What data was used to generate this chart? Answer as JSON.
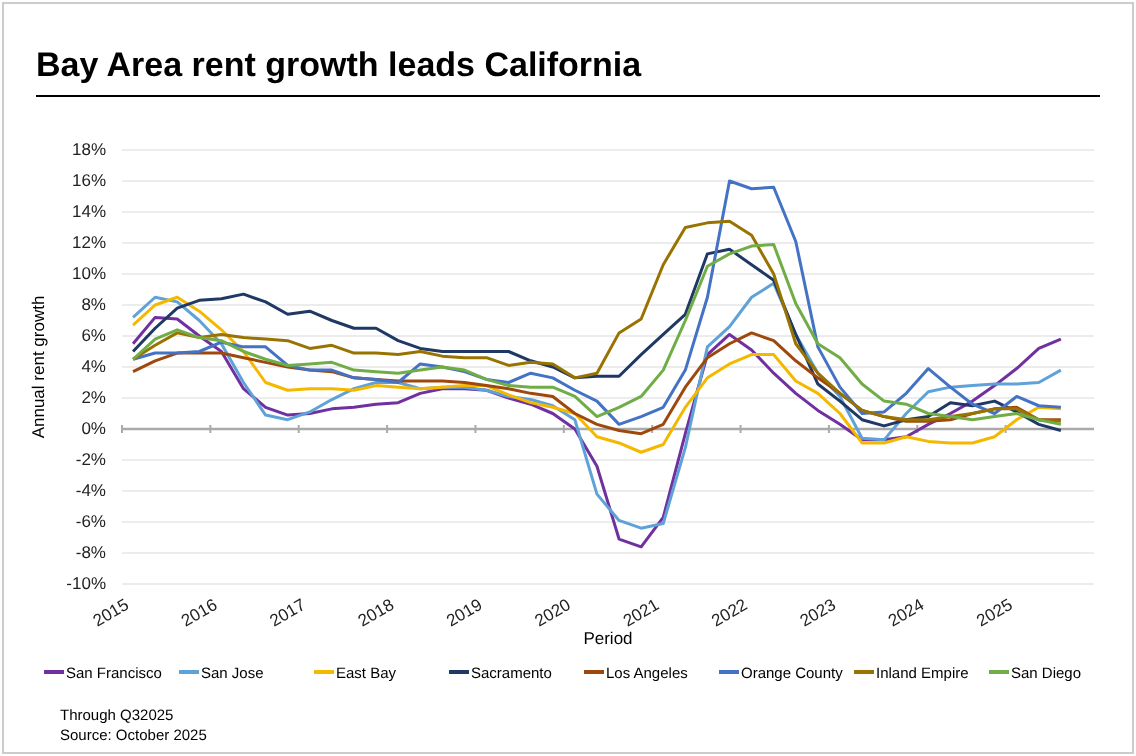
{
  "chart_data": {
    "type": "line",
    "title": "Bay Area rent growth leads California",
    "xlabel": "Period",
    "ylabel": "Annual rent growth",
    "x": [
      2015.125,
      2015.375,
      2015.625,
      2015.875,
      2016.125,
      2016.375,
      2016.625,
      2016.875,
      2017.125,
      2017.375,
      2017.625,
      2017.875,
      2018.125,
      2018.375,
      2018.625,
      2018.875,
      2019.125,
      2019.375,
      2019.625,
      2019.875,
      2020.125,
      2020.375,
      2020.625,
      2020.875,
      2021.125,
      2021.375,
      2021.625,
      2021.875,
      2022.125,
      2022.375,
      2022.625,
      2022.875,
      2023.125,
      2023.375,
      2023.625,
      2023.875,
      2024.125,
      2024.375,
      2024.625,
      2024.875,
      2025.125,
      2025.375,
      2025.625
    ],
    "xlim": [
      2015,
      2026
    ],
    "xticks": [
      2015,
      2016,
      2017,
      2018,
      2019,
      2020,
      2021,
      2022,
      2023,
      2024,
      2025
    ],
    "ylim": [
      -10,
      18
    ],
    "yticks": [
      {
        "value": -10,
        "label": "-10%"
      },
      {
        "value": -8,
        "label": "-8%"
      },
      {
        "value": -6,
        "label": "-6%"
      },
      {
        "value": -4,
        "label": "-4%"
      },
      {
        "value": -2,
        "label": "-2%"
      },
      {
        "value": 0,
        "label": "0%"
      },
      {
        "value": 2,
        "label": "2%"
      },
      {
        "value": 4,
        "label": "4%"
      },
      {
        "value": 6,
        "label": "6%"
      },
      {
        "value": 8,
        "label": "8%"
      },
      {
        "value": 10,
        "label": "10%"
      },
      {
        "value": 12,
        "label": "12%"
      },
      {
        "value": 14,
        "label": "14%"
      },
      {
        "value": 16,
        "label": "16%"
      },
      {
        "value": 18,
        "label": "18%"
      }
    ],
    "ref_lines": [
      {
        "axis": "y",
        "value": 0,
        "color": "#aaaaaa"
      }
    ],
    "grid": "y",
    "legend": "bottom",
    "marker": "none",
    "line_style": "solid",
    "series": [
      {
        "name": "San Francisco",
        "color": "#7030a0",
        "values": [
          5.5,
          7.2,
          7.1,
          6.0,
          5.0,
          2.6,
          1.4,
          0.9,
          1.0,
          1.3,
          1.4,
          1.6,
          1.7,
          2.3,
          2.6,
          2.6,
          2.5,
          2.0,
          1.6,
          1.0,
          0.0,
          -2.4,
          -7.1,
          -7.6,
          -5.7,
          -0.3,
          4.8,
          6.1,
          5.1,
          3.6,
          2.3,
          1.2,
          0.3,
          -0.7,
          -0.7,
          -0.5,
          0.3,
          1.0,
          1.8,
          2.8,
          3.9,
          5.2,
          5.8
        ]
      },
      {
        "name": "San Jose",
        "color": "#5fa2d8",
        "values": [
          7.2,
          8.5,
          8.2,
          7.0,
          5.5,
          3.0,
          0.9,
          0.6,
          1.1,
          1.9,
          2.6,
          3.0,
          3.0,
          2.6,
          2.7,
          2.7,
          2.5,
          2.1,
          1.9,
          1.5,
          0.6,
          -4.2,
          -5.9,
          -6.4,
          -6.1,
          -1.2,
          5.3,
          6.6,
          8.5,
          9.4,
          6.1,
          3.6,
          2.1,
          -0.6,
          -0.7,
          1.0,
          2.4,
          2.7,
          2.8,
          2.9,
          2.9,
          3.0,
          3.8
        ]
      },
      {
        "name": "East Bay",
        "color": "#f5b800",
        "values": [
          6.7,
          8.0,
          8.5,
          7.6,
          6.4,
          5.0,
          3.0,
          2.5,
          2.6,
          2.6,
          2.5,
          2.8,
          2.7,
          2.6,
          2.7,
          2.8,
          2.8,
          2.2,
          1.7,
          1.4,
          1.0,
          -0.5,
          -0.9,
          -1.5,
          -1.0,
          1.4,
          3.3,
          4.2,
          4.8,
          4.8,
          3.1,
          2.3,
          1.0,
          -0.9,
          -0.9,
          -0.5,
          -0.8,
          -0.9,
          -0.9,
          -0.5,
          0.6,
          1.4,
          1.3
        ]
      },
      {
        "name": "Sacramento",
        "color": "#1f3864",
        "values": [
          5.0,
          6.5,
          7.8,
          8.3,
          8.4,
          8.7,
          8.2,
          7.4,
          7.6,
          7.0,
          6.5,
          6.5,
          5.7,
          5.2,
          5.0,
          5.0,
          5.0,
          5.0,
          4.4,
          4.0,
          3.3,
          3.4,
          3.4,
          4.8,
          6.1,
          7.4,
          11.3,
          11.6,
          10.6,
          9.6,
          6.1,
          2.9,
          1.8,
          0.6,
          0.2,
          0.6,
          0.8,
          1.7,
          1.5,
          1.8,
          1.1,
          0.3,
          -0.1
        ]
      },
      {
        "name": "Los Angeles",
        "color": "#9e480e",
        "values": [
          3.7,
          4.4,
          4.9,
          4.9,
          4.9,
          4.6,
          4.3,
          4.0,
          3.8,
          3.7,
          3.3,
          3.2,
          3.1,
          3.1,
          3.1,
          3.0,
          2.8,
          2.6,
          2.3,
          2.1,
          1.0,
          0.3,
          -0.1,
          -0.3,
          0.3,
          2.7,
          4.6,
          5.5,
          6.2,
          5.7,
          4.4,
          3.3,
          2.3,
          1.2,
          0.8,
          0.5,
          0.5,
          0.6,
          1.0,
          1.3,
          1.4,
          0.6,
          0.6
        ]
      },
      {
        "name": "Orange County",
        "color": "#4472c4",
        "values": [
          4.5,
          4.9,
          4.9,
          5.0,
          5.6,
          5.3,
          5.3,
          4.1,
          3.8,
          3.8,
          3.3,
          3.2,
          3.0,
          4.2,
          4.0,
          3.7,
          3.2,
          3.0,
          3.6,
          3.3,
          2.5,
          1.8,
          0.3,
          0.8,
          1.4,
          3.8,
          8.5,
          16.0,
          15.5,
          15.6,
          12.1,
          5.3,
          2.7,
          1.0,
          1.1,
          2.3,
          3.9,
          2.7,
          1.6,
          1.0,
          2.1,
          1.5,
          1.4
        ]
      },
      {
        "name": "Inland Empire",
        "color": "#997300",
        "values": [
          4.5,
          5.4,
          6.2,
          5.9,
          6.1,
          5.9,
          5.8,
          5.7,
          5.2,
          5.4,
          4.9,
          4.9,
          4.8,
          5.0,
          4.7,
          4.6,
          4.6,
          4.1,
          4.3,
          4.2,
          3.3,
          3.6,
          6.2,
          7.1,
          10.6,
          13.0,
          13.3,
          13.4,
          12.5,
          10.0,
          5.5,
          3.6,
          2.3,
          1.2,
          0.8,
          0.6,
          0.6,
          0.8,
          1.0,
          1.3,
          1.3,
          0.6,
          0.5
        ]
      },
      {
        "name": "San Diego",
        "color": "#70ad47",
        "values": [
          4.5,
          5.8,
          6.4,
          5.9,
          5.7,
          5.0,
          4.5,
          4.1,
          4.2,
          4.3,
          3.8,
          3.7,
          3.6,
          3.8,
          4.0,
          3.8,
          3.2,
          2.8,
          2.7,
          2.7,
          2.1,
          0.8,
          1.4,
          2.1,
          3.8,
          7.0,
          10.5,
          11.3,
          11.8,
          11.9,
          8.1,
          5.5,
          4.6,
          2.9,
          1.8,
          1.6,
          1.0,
          0.8,
          0.6,
          0.8,
          1.0,
          0.6,
          0.3
        ]
      }
    ],
    "annotations": [
      "Through Q32025",
      "Source: October 2025"
    ]
  }
}
